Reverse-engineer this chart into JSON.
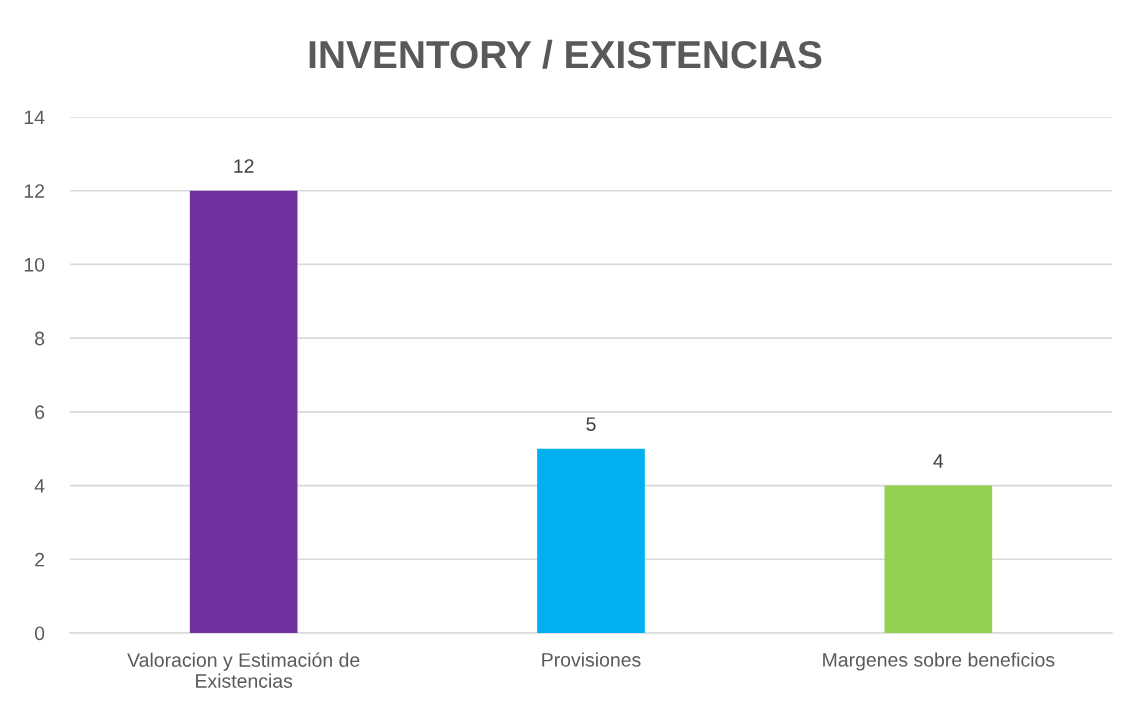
{
  "chart_data": {
    "type": "bar",
    "title": "INVENTORY / EXISTENCIAS",
    "categories": [
      "Valoracion y Estimación de\nExistencias",
      "Provisiones",
      "Margenes sobre beneficios"
    ],
    "values": [
      12,
      5,
      4
    ],
    "colors": [
      "#7030a0",
      "#00b0f0",
      "#92d050"
    ],
    "ylim": [
      0,
      14
    ],
    "yticks": [
      0,
      2,
      4,
      6,
      8,
      10,
      12,
      14
    ],
    "grid": "y",
    "data_labels": true
  }
}
